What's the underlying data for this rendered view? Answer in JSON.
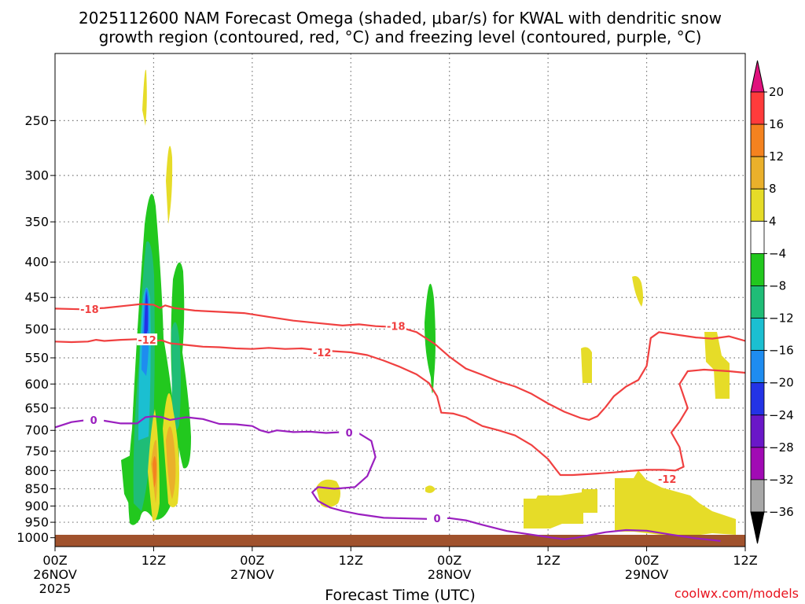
{
  "chart_data": {
    "type": "heatmap",
    "title_lines": [
      "2025112600 NAM Forecast Omega (shaded, μbar/s) for KWAL with dendritic snow",
      "growth region (contoured, red, °C) and freezing level (contoured, purple, °C)"
    ],
    "xlabel": "Forecast Time (UTC)",
    "ylabel": "",
    "y_axis": {
      "scale": "log-pressure",
      "inverted": true,
      "range": [
        1030,
        200
      ],
      "ticks": [
        250,
        300,
        350,
        400,
        450,
        500,
        550,
        600,
        650,
        700,
        750,
        800,
        850,
        900,
        950,
        1000
      ]
    },
    "x_axis": {
      "range_hours": [
        0,
        84
      ],
      "ticks": [
        {
          "hour": 0,
          "lines": [
            "00Z",
            "26NOV",
            "2025"
          ]
        },
        {
          "hour": 12,
          "lines": [
            "12Z"
          ]
        },
        {
          "hour": 24,
          "lines": [
            "00Z",
            "27NOV"
          ]
        },
        {
          "hour": 36,
          "lines": [
            "12Z"
          ]
        },
        {
          "hour": 48,
          "lines": [
            "00Z",
            "28NOV"
          ]
        },
        {
          "hour": 60,
          "lines": [
            "12Z"
          ]
        },
        {
          "hour": 72,
          "lines": [
            "00Z",
            "29NOV"
          ]
        },
        {
          "hour": 84,
          "lines": [
            "12Z"
          ]
        }
      ]
    },
    "grid": true,
    "colorbar": {
      "labels": [
        "20",
        "16",
        "12",
        "8",
        "4",
        "−4",
        "−8",
        "−12",
        "−16",
        "−20",
        "−24",
        "−28",
        "−32",
        "−36"
      ],
      "colors": [
        "#ff3b3b",
        "#f4821f",
        "#eab02b",
        "#e6dc28",
        "#ffffff",
        "#22c81e",
        "#1fbd77",
        "#1bbfd1",
        "#1e8cf0",
        "#2333e6",
        "#6a17c8",
        "#a10ab4",
        "#a8a8a8"
      ],
      "top_color": "#e0117d",
      "bottom_color": "#000000"
    },
    "contours": [
      {
        "name": "-18",
        "color": "#f04040",
        "labels": [
          {
            "text": "-18",
            "hour": 4.2,
            "p": 468
          },
          {
            "text": "-18",
            "hour": 41.5,
            "p": 495
          }
        ],
        "points": [
          [
            0,
            467
          ],
          [
            3,
            468
          ],
          [
            6,
            466
          ],
          [
            9,
            462
          ],
          [
            10.5,
            460
          ],
          [
            12,
            461
          ],
          [
            12.8,
            466
          ],
          [
            13.4,
            462
          ],
          [
            14.5,
            466
          ],
          [
            17,
            470
          ],
          [
            20,
            472
          ],
          [
            23,
            474
          ],
          [
            26,
            480
          ],
          [
            29,
            486
          ],
          [
            32,
            490
          ],
          [
            35,
            494
          ],
          [
            37,
            492
          ],
          [
            39,
            495
          ],
          [
            42,
            497
          ],
          [
            44,
            505
          ],
          [
            46.2,
            525
          ],
          [
            48,
            548
          ],
          [
            50,
            570
          ],
          [
            52,
            582
          ],
          [
            54,
            595
          ],
          [
            56,
            605
          ],
          [
            58,
            620
          ],
          [
            60,
            640
          ],
          [
            62,
            658
          ],
          [
            64,
            672
          ],
          [
            65,
            676
          ],
          [
            66,
            668
          ],
          [
            67,
            648
          ],
          [
            68,
            625
          ],
          [
            69.5,
            605
          ],
          [
            71,
            592
          ],
          [
            72,
            565
          ],
          [
            72.5,
            515
          ],
          [
            73.5,
            505
          ],
          [
            76,
            510
          ],
          [
            78,
            514
          ],
          [
            80,
            516
          ],
          [
            82,
            512
          ],
          [
            84,
            520
          ]
        ]
      },
      {
        "name": "-12",
        "color": "#f04040",
        "labels": [
          {
            "text": "-12",
            "hour": 11.2,
            "p": 518
          },
          {
            "text": "-12",
            "hour": 32.5,
            "p": 540
          },
          {
            "text": "-12",
            "hour": 74.5,
            "p": 823
          }
        ],
        "points": [
          [
            0,
            521
          ],
          [
            2,
            522
          ],
          [
            4,
            521
          ],
          [
            5,
            518
          ],
          [
            6,
            520
          ],
          [
            8,
            518
          ],
          [
            10,
            517
          ],
          [
            12,
            520
          ],
          [
            13,
            519
          ],
          [
            14,
            524
          ],
          [
            16,
            527
          ],
          [
            18,
            530
          ],
          [
            20,
            531
          ],
          [
            22,
            533
          ],
          [
            24,
            534
          ],
          [
            26,
            532
          ],
          [
            28,
            534
          ],
          [
            30,
            533
          ],
          [
            32,
            536
          ],
          [
            34,
            538
          ],
          [
            36,
            540
          ],
          [
            38,
            545
          ],
          [
            40,
            555
          ],
          [
            42,
            567
          ],
          [
            44,
            581
          ],
          [
            45.5,
            598
          ],
          [
            46.5,
            625
          ],
          [
            47,
            660
          ],
          [
            48.5,
            662
          ],
          [
            50,
            670
          ],
          [
            52,
            690
          ],
          [
            54,
            700
          ],
          [
            56,
            712
          ],
          [
            58,
            735
          ],
          [
            60,
            770
          ],
          [
            61,
            798
          ],
          [
            61.5,
            812
          ],
          [
            63,
            812
          ],
          [
            66,
            808
          ],
          [
            68,
            805
          ],
          [
            70,
            801
          ],
          [
            72,
            798
          ],
          [
            74,
            798
          ],
          [
            75.5,
            800
          ],
          [
            76.5,
            790
          ],
          [
            76,
            740
          ],
          [
            75,
            705
          ],
          [
            76,
            680
          ],
          [
            77,
            650
          ],
          [
            76,
            600
          ],
          [
            77,
            575
          ],
          [
            79,
            572
          ],
          [
            82,
            575
          ],
          [
            84,
            578
          ]
        ]
      },
      {
        "name": "0",
        "color": "#9a1fbf",
        "labels": [
          {
            "text": "0",
            "hour": 4.7,
            "p": 676
          },
          {
            "text": "0",
            "hour": 35.8,
            "p": 705
          },
          {
            "text": "0",
            "hour": 46.5,
            "p": 938
          }
        ],
        "points": [
          [
            0,
            693
          ],
          [
            2,
            681
          ],
          [
            4,
            676
          ],
          [
            6,
            678
          ],
          [
            8,
            684
          ],
          [
            10,
            684
          ],
          [
            11,
            670
          ],
          [
            12,
            668
          ],
          [
            13,
            670
          ],
          [
            14,
            676
          ],
          [
            16,
            670
          ],
          [
            18,
            674
          ],
          [
            20,
            685
          ],
          [
            22,
            686
          ],
          [
            24,
            690
          ],
          [
            25,
            700
          ],
          [
            26,
            705
          ],
          [
            27,
            700
          ],
          [
            29,
            704
          ],
          [
            31,
            703
          ],
          [
            33,
            706
          ],
          [
            35,
            704
          ],
          [
            37,
            707
          ],
          [
            38.5,
            725
          ],
          [
            39,
            765
          ],
          [
            38,
            815
          ],
          [
            36.5,
            845
          ],
          [
            34,
            850
          ],
          [
            32,
            845
          ],
          [
            31.3,
            860
          ],
          [
            32,
            885
          ],
          [
            33.5,
            905
          ],
          [
            35,
            915
          ],
          [
            37,
            925
          ],
          [
            40,
            936
          ],
          [
            43,
            938
          ],
          [
            46,
            940
          ],
          [
            48,
            937
          ],
          [
            50,
            944
          ],
          [
            52,
            958
          ],
          [
            55,
            978
          ],
          [
            58,
            990
          ],
          [
            60.5,
            1000
          ],
          [
            62,
            1005
          ],
          [
            63.5,
            1000
          ],
          [
            65,
            992
          ],
          [
            67,
            982
          ],
          [
            69.5,
            975
          ],
          [
            72,
            977
          ],
          [
            75,
            990
          ],
          [
            78,
            1002
          ],
          [
            80,
            1008
          ],
          [
            81,
            1011
          ]
        ]
      }
    ]
  },
  "credit": "coolwx.com/models"
}
